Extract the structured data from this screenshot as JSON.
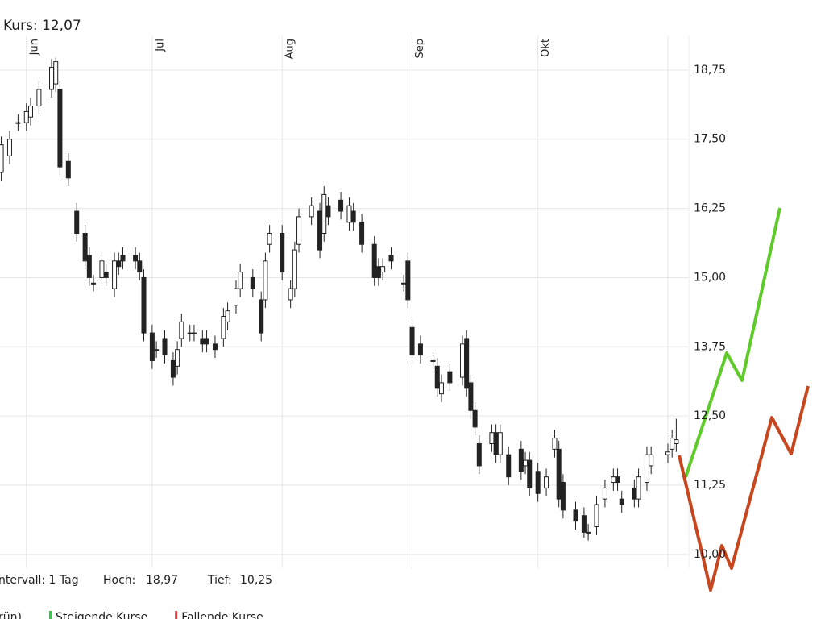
{
  "chart_data": {
    "type": "candlestick",
    "title": "Kurs: 12,07",
    "x": [
      -6,
      -4,
      -2,
      0,
      1,
      3,
      6,
      7,
      8,
      10,
      12,
      14,
      15,
      16,
      18,
      19,
      21,
      22,
      23,
      26,
      27,
      28,
      30,
      31,
      33,
      35,
      36,
      37,
      39,
      40,
      42,
      43,
      45,
      47,
      48,
      50,
      51,
      54,
      56,
      57,
      58,
      61,
      63,
      64,
      65,
      68,
      70,
      71,
      72,
      75,
      77,
      78,
      80,
      83,
      84,
      85,
      87,
      90,
      91,
      92,
      94,
      97,
      98,
      99,
      101,
      104,
      105,
      106,
      107,
      108,
      111,
      112,
      113,
      115,
      118,
      119,
      120,
      122,
      124,
      126,
      127,
      128,
      131,
      133,
      134,
      136,
      138,
      140,
      141,
      142,
      145,
      146,
      148,
      149,
      153,
      154,
      155
    ],
    "open": [
      16.9,
      17.2,
      17.8,
      17.8,
      17.9,
      18.1,
      18.4,
      18.5,
      18.4,
      17.1,
      16.2,
      15.8,
      15.4,
      14.9,
      15.0,
      15.1,
      14.8,
      15.3,
      15.4,
      15.4,
      15.3,
      15.0,
      14.0,
      13.7,
      13.9,
      13.5,
      13.4,
      13.9,
      14.0,
      14.0,
      13.9,
      13.9,
      13.8,
      13.9,
      14.2,
      14.5,
      14.8,
      15.0,
      14.6,
      14.6,
      15.6,
      15.8,
      14.6,
      14.8,
      15.6,
      16.1,
      16.2,
      15.8,
      16.3,
      16.4,
      16.0,
      16.2,
      16.0,
      15.6,
      15.2,
      15.1,
      15.4,
      14.9,
      15.3,
      14.1,
      13.8,
      13.5,
      13.4,
      12.9,
      13.3,
      13.2,
      13.9,
      13.1,
      12.6,
      12.0,
      12.0,
      12.2,
      11.8,
      11.8,
      11.9,
      11.6,
      11.7,
      11.5,
      11.2,
      11.9,
      11.9,
      11.3,
      10.8,
      10.7,
      10.4,
      10.5,
      11.0,
      11.3,
      11.4,
      11.0,
      11.2,
      11.0,
      11.3,
      11.6,
      11.8,
      11.9,
      12.0
    ],
    "high": [
      17.55,
      17.65,
      17.95,
      18.15,
      18.25,
      18.55,
      18.95,
      18.97,
      18.55,
      17.25,
      16.35,
      15.95,
      15.55,
      15.05,
      15.45,
      15.25,
      15.45,
      15.45,
      15.55,
      15.55,
      15.45,
      15.15,
      14.15,
      13.85,
      14.05,
      13.65,
      13.85,
      14.35,
      14.15,
      14.15,
      14.05,
      14.05,
      13.95,
      14.45,
      14.55,
      14.95,
      15.25,
      15.15,
      14.75,
      15.45,
      15.95,
      15.95,
      14.95,
      15.65,
      16.25,
      16.45,
      16.35,
      16.65,
      16.45,
      16.55,
      16.45,
      16.35,
      16.15,
      15.75,
      15.35,
      15.35,
      15.55,
      15.05,
      15.45,
      14.25,
      13.95,
      13.65,
      13.55,
      13.25,
      13.45,
      13.95,
      14.05,
      13.25,
      12.75,
      12.15,
      12.35,
      12.35,
      12.35,
      11.95,
      12.05,
      11.85,
      11.85,
      11.65,
      11.55,
      12.25,
      12.05,
      11.45,
      10.95,
      10.85,
      10.55,
      11.05,
      11.35,
      11.55,
      11.55,
      11.15,
      11.35,
      11.55,
      11.95,
      11.95,
      12.0,
      12.25,
      12.45
    ],
    "low": [
      16.75,
      17.05,
      17.65,
      17.65,
      17.75,
      17.95,
      18.25,
      18.35,
      16.85,
      16.65,
      15.65,
      15.15,
      14.85,
      14.75,
      14.85,
      14.85,
      14.65,
      15.05,
      15.15,
      15.15,
      14.95,
      13.85,
      13.35,
      13.55,
      13.45,
      13.05,
      13.25,
      13.75,
      13.85,
      13.85,
      13.65,
      13.65,
      13.55,
      13.75,
      14.05,
      14.35,
      14.65,
      14.65,
      13.85,
      14.45,
      15.45,
      14.95,
      14.45,
      14.65,
      15.45,
      15.95,
      15.35,
      15.65,
      15.95,
      16.05,
      15.85,
      15.85,
      15.45,
      14.85,
      14.85,
      14.95,
      15.15,
      14.75,
      14.45,
      13.45,
      13.45,
      13.35,
      12.85,
      12.75,
      12.95,
      13.05,
      12.85,
      12.45,
      12.15,
      11.45,
      11.85,
      11.65,
      11.65,
      11.25,
      11.35,
      11.45,
      11.05,
      10.95,
      11.05,
      11.75,
      10.85,
      10.65,
      10.45,
      10.3,
      10.25,
      10.35,
      10.85,
      11.15,
      11.15,
      10.75,
      10.85,
      10.85,
      11.15,
      11.45,
      11.65,
      11.75,
      11.85
    ],
    "close": [
      17.4,
      17.5,
      17.8,
      18.0,
      18.1,
      18.4,
      18.8,
      18.9,
      17.0,
      16.8,
      15.8,
      15.3,
      15.0,
      14.9,
      15.3,
      15.0,
      15.3,
      15.2,
      15.3,
      15.3,
      15.1,
      14.0,
      13.5,
      13.7,
      13.6,
      13.2,
      13.7,
      14.2,
      14.0,
      14.0,
      13.8,
      13.8,
      13.7,
      14.3,
      14.4,
      14.8,
      15.1,
      14.8,
      14.0,
      15.3,
      15.8,
      15.1,
      14.8,
      15.5,
      16.1,
      16.3,
      15.5,
      16.5,
      16.1,
      16.2,
      16.3,
      16.0,
      15.6,
      15.0,
      15.0,
      15.2,
      15.3,
      14.9,
      14.6,
      13.6,
      13.6,
      13.5,
      13.0,
      13.1,
      13.1,
      13.8,
      13.0,
      12.6,
      12.3,
      11.6,
      12.2,
      11.8,
      12.2,
      11.4,
      11.5,
      11.7,
      11.2,
      11.1,
      11.4,
      12.1,
      11.0,
      10.8,
      10.6,
      10.4,
      10.4,
      10.9,
      11.2,
      11.4,
      11.3,
      10.9,
      11.0,
      11.4,
      11.8,
      11.8,
      11.85,
      12.1,
      12.07
    ],
    "up_color": "#ffffff",
    "down_color": "#222222",
    "xlim": [
      -6.3,
      158
    ],
    "xticks": [
      {
        "value": 0,
        "label": "Jun"
      },
      {
        "value": 30,
        "label": "Jul"
      },
      {
        "value": 61,
        "label": "Aug"
      },
      {
        "value": 92,
        "label": "Sep"
      },
      {
        "value": 122,
        "label": "Okt"
      },
      {
        "value": 153,
        "label": null
      }
    ],
    "ylim": [
      9.75,
      19.36
    ],
    "yticks": [
      {
        "value": 10,
        "label": "10,00"
      },
      {
        "value": 11.25,
        "label": "11,25"
      },
      {
        "value": 12.5,
        "label": "12,50"
      },
      {
        "value": 13.75,
        "label": "13,75"
      },
      {
        "value": 15,
        "label": "15,00"
      },
      {
        "value": 16.25,
        "label": "16,25"
      },
      {
        "value": 17.5,
        "label": "17,50"
      },
      {
        "value": 18.75,
        "label": "18,75"
      }
    ],
    "grid": true,
    "info": {
      "interval": "ntervall: 1 Tag",
      "high_label": "Hoch:",
      "high": "18,97",
      "low_label": "Tief:",
      "low": "10,25"
    },
    "legend": [
      {
        "name": "rün)",
        "color": null
      },
      {
        "name": "Steigende Kurse",
        "color": "#2ecc40"
      },
      {
        "name": "Fallende Kurse",
        "color": "#e8393f"
      }
    ]
  }
}
